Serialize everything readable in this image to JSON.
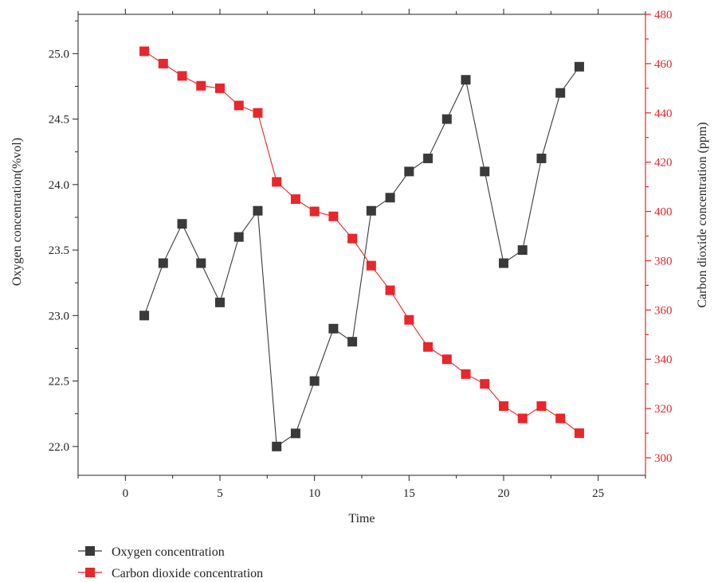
{
  "chart_data": {
    "type": "line",
    "title": "",
    "xlabel": "Time",
    "ylabel_left": "Oxygen concentration(%vol)",
    "ylabel_right": "Carbon dioxide concentration (ppm)",
    "xlim": [
      -2.5,
      27.5
    ],
    "ylim_left": [
      21.78,
      25.3
    ],
    "ylim_right": [
      292.9,
      480
    ],
    "x_ticks": [
      0,
      5,
      10,
      15,
      20,
      25
    ],
    "x_tick_labels": [
      "0",
      "5",
      "10",
      "15",
      "20",
      "25"
    ],
    "y_left_ticks": [
      22.0,
      22.5,
      23.0,
      23.5,
      24.0,
      24.5,
      25.0
    ],
    "y_left_tick_labels": [
      "22.0",
      "22.5",
      "23.0",
      "23.5",
      "24.0",
      "24.5",
      "25.0"
    ],
    "y_right_ticks": [
      300,
      320,
      340,
      360,
      380,
      400,
      420,
      440,
      460,
      480
    ],
    "y_right_tick_labels": [
      "300",
      "320",
      "340",
      "360",
      "380",
      "400",
      "420",
      "440",
      "460",
      "480"
    ],
    "legend_position": "bottom-left, below plot",
    "grid": false,
    "x": [
      1,
      2,
      3,
      4,
      5,
      6,
      7,
      8,
      9,
      10,
      11,
      12,
      13,
      14,
      15,
      16,
      17,
      18,
      19,
      20,
      21,
      22,
      23,
      24
    ],
    "series": [
      {
        "name": "Oxygen concentration",
        "axis": "left",
        "color": "#3a3a3a",
        "values": [
          23.0,
          23.4,
          23.7,
          23.4,
          23.1,
          23.6,
          23.8,
          22.0,
          22.1,
          22.5,
          22.9,
          22.8,
          23.8,
          23.9,
          24.1,
          24.2,
          24.5,
          24.8,
          24.1,
          23.4,
          23.5,
          24.2,
          24.7,
          24.9
        ]
      },
      {
        "name": "Carbon dioxide concentration",
        "axis": "right",
        "color": "#e8262b",
        "values": [
          465,
          460,
          455,
          451,
          450,
          443,
          440,
          412,
          405,
          400,
          398,
          389,
          378,
          368,
          356,
          345,
          340,
          334,
          330,
          321,
          316,
          321,
          316,
          310
        ]
      }
    ]
  }
}
